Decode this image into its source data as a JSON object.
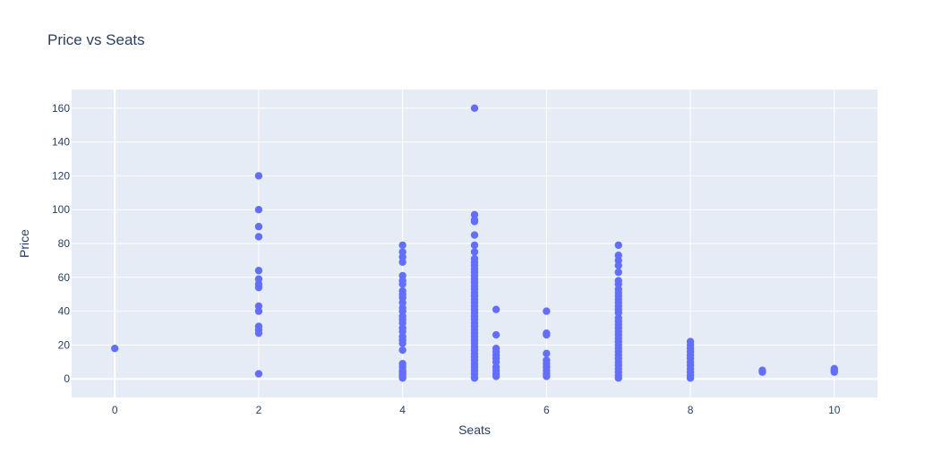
{
  "chart_data": {
    "type": "scatter",
    "title": "Price vs Seats",
    "xlabel": "Seats",
    "ylabel": "Price",
    "xlim": [
      -0.6,
      10.6
    ],
    "ylim": [
      -11,
      171
    ],
    "xticks": [
      0,
      2,
      4,
      6,
      8,
      10
    ],
    "yticks": [
      0,
      20,
      40,
      60,
      80,
      100,
      120,
      140,
      160
    ],
    "grid": true,
    "legend": "none",
    "colors": {
      "marker": "#636efa",
      "plot_bg": "#e5ecf6",
      "grid": "#ffffff",
      "text": "#2a3f5f"
    },
    "series": [
      {
        "points": [
          [
            0,
            18
          ],
          [
            2,
            120
          ],
          [
            2,
            100
          ],
          [
            2,
            90
          ],
          [
            2,
            84
          ],
          [
            2,
            64
          ],
          [
            2,
            59
          ],
          [
            2,
            56
          ],
          [
            2,
            54
          ],
          [
            2,
            43
          ],
          [
            2,
            40
          ],
          [
            2,
            31
          ],
          [
            2,
            29
          ],
          [
            2,
            27
          ],
          [
            2,
            3
          ],
          [
            4,
            79
          ],
          [
            4,
            75
          ],
          [
            4,
            72
          ],
          [
            4,
            69
          ],
          [
            4,
            61
          ],
          [
            4,
            58
          ],
          [
            4,
            56
          ],
          [
            4,
            52
          ],
          [
            4,
            50
          ],
          [
            4,
            48
          ],
          [
            4,
            45
          ],
          [
            4,
            42
          ],
          [
            4,
            40
          ],
          [
            4,
            37
          ],
          [
            4,
            35
          ],
          [
            4,
            33
          ],
          [
            4,
            30
          ],
          [
            4,
            28
          ],
          [
            4,
            25
          ],
          [
            4,
            23
          ],
          [
            4,
            21
          ],
          [
            4,
            17
          ],
          [
            4,
            9
          ],
          [
            4,
            7
          ],
          [
            4,
            5
          ],
          [
            4,
            4
          ],
          [
            4,
            3
          ],
          [
            4,
            2
          ],
          [
            4,
            1
          ],
          [
            4,
            0.5
          ],
          [
            5,
            160
          ],
          [
            5,
            97
          ],
          [
            5,
            94
          ],
          [
            5,
            93
          ],
          [
            5,
            85
          ],
          [
            5,
            79
          ],
          [
            5,
            75
          ],
          [
            5,
            71
          ],
          [
            5,
            69
          ],
          [
            5,
            67
          ],
          [
            5,
            65
          ],
          [
            5,
            63
          ],
          [
            5,
            61
          ],
          [
            5,
            59
          ],
          [
            5,
            57
          ],
          [
            5,
            55
          ],
          [
            5,
            53
          ],
          [
            5,
            51
          ],
          [
            5,
            49
          ],
          [
            5,
            47
          ],
          [
            5,
            45
          ],
          [
            5,
            43
          ],
          [
            5,
            41
          ],
          [
            5,
            39
          ],
          [
            5,
            37
          ],
          [
            5,
            35
          ],
          [
            5,
            33
          ],
          [
            5,
            31
          ],
          [
            5,
            29
          ],
          [
            5,
            27
          ],
          [
            5,
            25
          ],
          [
            5,
            23
          ],
          [
            5,
            21
          ],
          [
            5,
            19
          ],
          [
            5,
            17
          ],
          [
            5,
            15
          ],
          [
            5,
            13
          ],
          [
            5,
            11
          ],
          [
            5,
            9
          ],
          [
            5,
            7
          ],
          [
            5,
            5
          ],
          [
            5,
            3
          ],
          [
            5,
            1
          ],
          [
            5,
            0.5
          ],
          [
            5.3,
            41
          ],
          [
            5.3,
            26
          ],
          [
            5.3,
            18
          ],
          [
            5.3,
            16
          ],
          [
            5.3,
            14
          ],
          [
            5.3,
            12
          ],
          [
            5.3,
            10
          ],
          [
            5.3,
            7
          ],
          [
            5.3,
            5
          ],
          [
            5.3,
            3
          ],
          [
            5.3,
            1.5
          ],
          [
            6,
            40
          ],
          [
            6,
            27
          ],
          [
            6,
            26
          ],
          [
            6,
            15
          ],
          [
            6,
            11
          ],
          [
            6,
            9
          ],
          [
            6,
            7
          ],
          [
            6,
            5
          ],
          [
            6,
            3
          ],
          [
            6,
            1.5
          ],
          [
            7,
            79
          ],
          [
            7,
            73
          ],
          [
            7,
            70
          ],
          [
            7,
            67
          ],
          [
            7,
            63
          ],
          [
            7,
            58
          ],
          [
            7,
            56
          ],
          [
            7,
            53
          ],
          [
            7,
            51
          ],
          [
            7,
            49
          ],
          [
            7,
            47
          ],
          [
            7,
            45
          ],
          [
            7,
            43
          ],
          [
            7,
            41
          ],
          [
            7,
            39
          ],
          [
            7,
            36
          ],
          [
            7,
            34
          ],
          [
            7,
            32
          ],
          [
            7,
            30
          ],
          [
            7,
            28
          ],
          [
            7,
            26
          ],
          [
            7,
            24
          ],
          [
            7,
            22
          ],
          [
            7,
            20
          ],
          [
            7,
            18
          ],
          [
            7,
            16
          ],
          [
            7,
            14
          ],
          [
            7,
            12
          ],
          [
            7,
            10
          ],
          [
            7,
            8
          ],
          [
            7,
            6
          ],
          [
            7,
            4
          ],
          [
            7,
            2
          ],
          [
            7,
            0.5
          ],
          [
            8,
            22
          ],
          [
            8,
            20
          ],
          [
            8,
            18
          ],
          [
            8,
            16
          ],
          [
            8,
            14
          ],
          [
            8,
            12
          ],
          [
            8,
            10
          ],
          [
            8,
            8
          ],
          [
            8,
            6
          ],
          [
            8,
            4
          ],
          [
            8,
            2
          ],
          [
            8,
            0.5
          ],
          [
            9,
            5
          ],
          [
            9,
            4
          ],
          [
            10,
            6
          ],
          [
            10,
            5
          ],
          [
            10,
            4
          ]
        ]
      }
    ]
  }
}
